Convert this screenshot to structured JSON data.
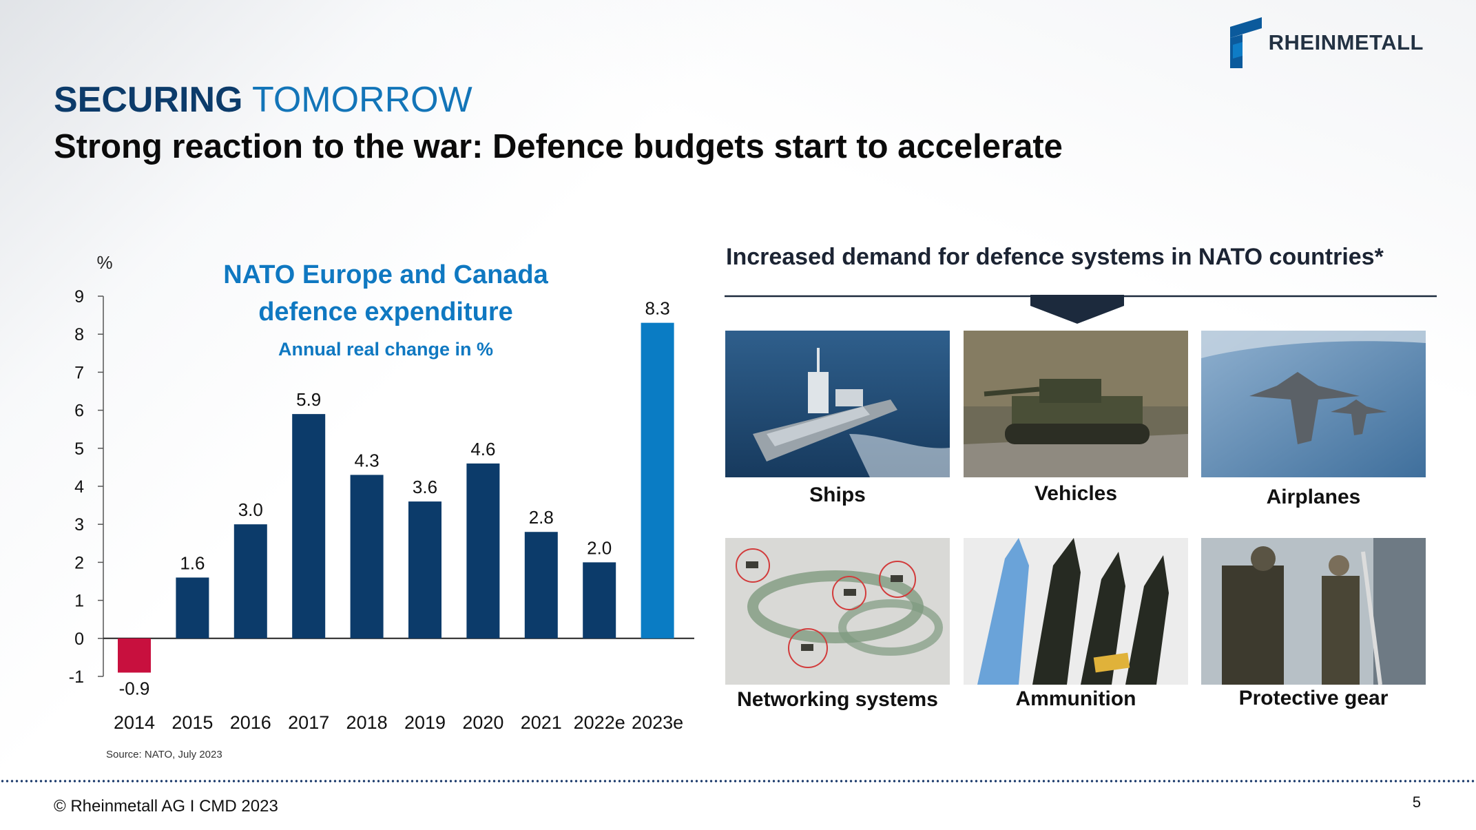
{
  "brand": {
    "name": "RHEINMETALL"
  },
  "header": {
    "kicker_bold": "SECURING",
    "kicker_light": "TOMORROW",
    "title": "Strong reaction to the war: Defence budgets start to accelerate"
  },
  "chart": {
    "title_line1": "NATO Europe and Canada",
    "title_line2": "defence expenditure",
    "subtitle": "Annual real change in %",
    "unit": "%",
    "source": "Source: NATO, July 2023"
  },
  "chart_data": {
    "type": "bar",
    "title": "NATO Europe and Canada defence expenditure",
    "subtitle": "Annual real change in %",
    "ylabel": "%",
    "xlabel": "",
    "categories": [
      "2014",
      "2015",
      "2016",
      "2017",
      "2018",
      "2019",
      "2020",
      "2021",
      "2022e",
      "2023e"
    ],
    "values": [
      -0.9,
      1.6,
      3.0,
      5.9,
      4.3,
      3.6,
      4.6,
      2.8,
      2.0,
      8.3
    ],
    "value_labels": [
      "-0.9",
      "1.6",
      "3.0",
      "5.9",
      "4.3",
      "3.6",
      "4.6",
      "2.8",
      "2.0",
      "8.3"
    ],
    "ylim": [
      -1,
      9
    ],
    "yticks": [
      -1,
      0,
      1,
      2,
      3,
      4,
      5,
      6,
      7,
      8,
      9
    ],
    "grid": false,
    "legend": "none",
    "colors": {
      "default": "#0c3b6a",
      "negative": "#c8103e",
      "highlight": "#0a7cc4"
    }
  },
  "demand": {
    "title": "Increased demand for defence systems in NATO countries*",
    "items": [
      {
        "label": "Ships",
        "icon": "ship-photo"
      },
      {
        "label": "Vehicles",
        "icon": "tank-photo"
      },
      {
        "label": "Airplanes",
        "icon": "fighter-jet-photo"
      },
      {
        "label": "Networking systems",
        "icon": "network-photo"
      },
      {
        "label": "Ammunition",
        "icon": "ammunition-photo"
      },
      {
        "label": "Protective gear",
        "icon": "soldier-gear-photo"
      }
    ]
  },
  "footer": {
    "copyright": "© Rheinmetall AG I   CMD 2023",
    "page": "5"
  }
}
